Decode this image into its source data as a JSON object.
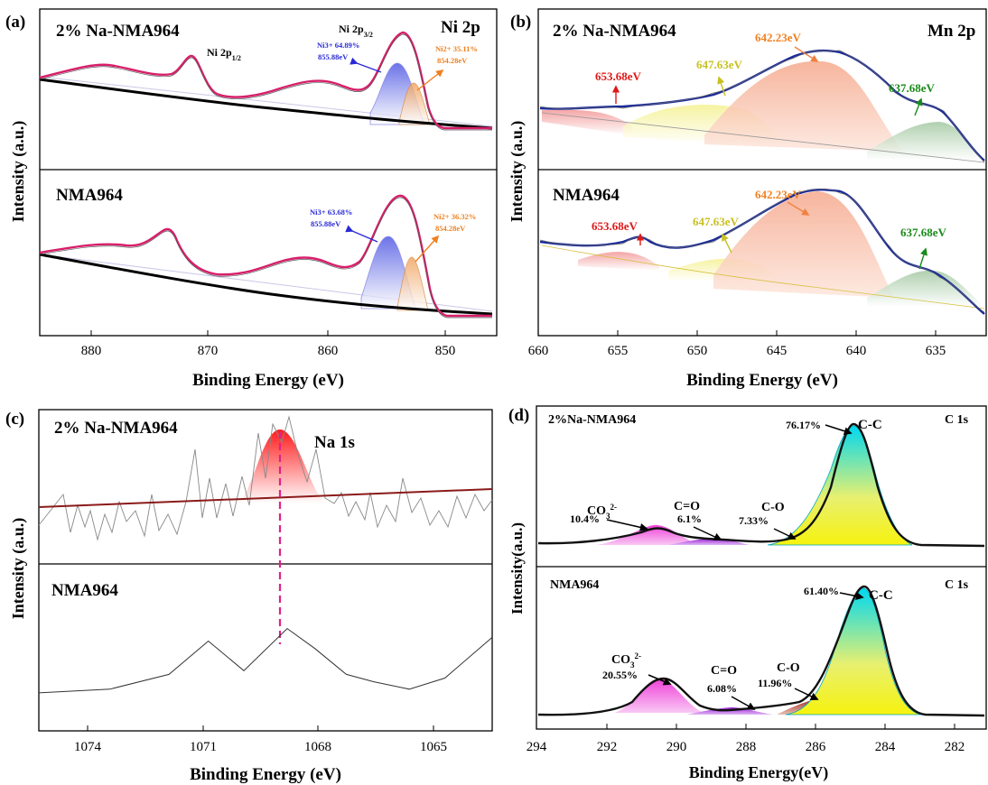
{
  "panels": [
    {
      "id": "a",
      "panel_label": "(a)",
      "xlabel": "Binding Energy (eV)",
      "ylabel": "Intensity (a.u.)",
      "xticks": [
        "880",
        "870",
        "860",
        "850"
      ],
      "top": {
        "sample": "2% Na-NMA964",
        "element": "Ni 2p",
        "labels": [
          "Ni 2p1/2",
          "Ni 2p3/2"
        ],
        "ni3_text": "Ni3+ 64.89%",
        "ni3_energy": "855.88eV",
        "ni2_text": "Ni2+ 35.11%",
        "ni2_energy": "854.28eV"
      },
      "bottom": {
        "sample": "NMA964",
        "ni3_text": "Ni3+ 63.68%",
        "ni3_energy": "855.88eV",
        "ni2_text": "Ni2+ 36.32%",
        "ni2_energy": "854.28eV"
      }
    },
    {
      "id": "b",
      "panel_label": "(b)",
      "xlabel": "Binding Energy (eV)",
      "ylabel": "Intensity (a.u.)",
      "xticks": [
        "660",
        "655",
        "650",
        "645",
        "640",
        "635"
      ],
      "top": {
        "sample": "2% Na-NMA964",
        "element": "Mn 2p",
        "peaks": [
          "653.68eV",
          "647.63eV",
          "642.23eV",
          "637.68eV"
        ]
      },
      "bottom": {
        "sample": "NMA964",
        "peaks": [
          "653.68eV",
          "647.63eV",
          "642.23eV",
          "637.68eV"
        ]
      }
    },
    {
      "id": "c",
      "panel_label": "(c)",
      "xlabel": "Binding Energy (eV)",
      "ylabel": "Intensity (a.u.)",
      "xticks": [
        "1074",
        "1071",
        "1068",
        "1065"
      ],
      "top": {
        "sample": "2% Na-NMA964",
        "element": "Na 1s"
      },
      "bottom": {
        "sample": "NMA964"
      }
    },
    {
      "id": "d",
      "panel_label": "(d)",
      "xlabel": "Binding Energy(eV)",
      "ylabel": "Intensity(a.u.)",
      "xticks": [
        "294",
        "292",
        "290",
        "288",
        "286",
        "284",
        "282"
      ],
      "top": {
        "sample": "2%Na-NMA964",
        "element": "C 1s",
        "cc": "76.17%",
        "cc_label": "C-C",
        "co": "7.33%",
        "co_label": "C-O",
        "c_o_double": "6.1%",
        "c_o_double_label": "C=O",
        "co3": "10.4%",
        "co3_label": "CO3 2-"
      },
      "bottom": {
        "sample": "NMA964",
        "element": "C 1s",
        "cc": "61.40%",
        "cc_label": "C-C",
        "co": "11.96%",
        "co_label": "C-O",
        "c_o_double": "6.08%",
        "c_o_double_label": "C=O",
        "co3": "20.55%",
        "co3_label": "CO3 2-"
      }
    }
  ],
  "chart_data": [
    {
      "type": "line",
      "title": "Ni 2p",
      "xlabel": "Binding Energy (eV)",
      "ylabel": "Intensity (a.u.)",
      "xlim": [
        883,
        847
      ],
      "x_reversed": true,
      "series": [
        {
          "name": "2% Na-NMA964",
          "peaks_eV": [
            878.0,
            871.0,
            860.8,
            855.88,
            854.28
          ],
          "components": {
            "Ni3+": {
              "center": 855.88,
              "percent": 64.89
            },
            "Ni2+": {
              "center": 854.28,
              "percent": 35.11
            }
          }
        },
        {
          "name": "NMA964",
          "peaks_eV": [
            879.0,
            873.0,
            861.0,
            855.88,
            854.28
          ],
          "components": {
            "Ni3+": {
              "center": 855.88,
              "percent": 63.68
            },
            "Ni2+": {
              "center": 854.28,
              "percent": 36.32
            }
          }
        }
      ]
    },
    {
      "type": "line",
      "title": "Mn 2p",
      "xlabel": "Binding Energy (eV)",
      "ylabel": "Intensity (a.u.)",
      "xlim": [
        660,
        633
      ],
      "x_reversed": true,
      "series": [
        {
          "name": "2% Na-NMA964",
          "components_eV": [
            653.68,
            647.63,
            642.23,
            637.68
          ]
        },
        {
          "name": "NMA964",
          "components_eV": [
            653.68,
            647.63,
            642.23,
            637.68
          ]
        }
      ]
    },
    {
      "type": "line",
      "title": "Na 1s",
      "xlabel": "Binding Energy (eV)",
      "ylabel": "Intensity (a.u.)",
      "xlim": [
        1075.3,
        1063.8
      ],
      "x_reversed": true,
      "series": [
        {
          "name": "2% Na-NMA964",
          "peak_eV": 1068.5
        },
        {
          "name": "NMA964",
          "points": [
            [
              1075.3,
              0.05
            ],
            [
              1073.5,
              0.1
            ],
            [
              1072.0,
              0.3
            ],
            [
              1071.0,
              0.75
            ],
            [
              1070.1,
              0.35
            ],
            [
              1069.0,
              0.92
            ],
            [
              1068.3,
              0.65
            ],
            [
              1067.5,
              0.3
            ],
            [
              1066.8,
              0.2
            ],
            [
              1065.9,
              0.1
            ],
            [
              1065.0,
              0.25
            ],
            [
              1063.8,
              0.8
            ]
          ]
        }
      ]
    },
    {
      "type": "line",
      "title": "C 1s",
      "xlabel": "Binding Energy(eV)",
      "ylabel": "Intensity(a.u.)",
      "xlim": [
        294,
        281
      ],
      "x_reversed": true,
      "series": [
        {
          "name": "2%Na-NMA964",
          "components": [
            {
              "label": "C-C",
              "center": 285.0,
              "percent": 76.17
            },
            {
              "label": "C-O",
              "center": 286.0,
              "percent": 7.33
            },
            {
              "label": "C=O",
              "center": 288.5,
              "percent": 6.1
            },
            {
              "label": "CO3 2-",
              "center": 290.6,
              "percent": 10.4
            }
          ]
        },
        {
          "name": "NMA964",
          "components": [
            {
              "label": "C-C",
              "center": 284.8,
              "percent": 61.4
            },
            {
              "label": "C-O",
              "center": 285.8,
              "percent": 11.96
            },
            {
              "label": "C=O",
              "center": 288.3,
              "percent": 6.08
            },
            {
              "label": "CO3 2-",
              "center": 290.0,
              "percent": 20.55
            }
          ]
        }
      ]
    }
  ]
}
